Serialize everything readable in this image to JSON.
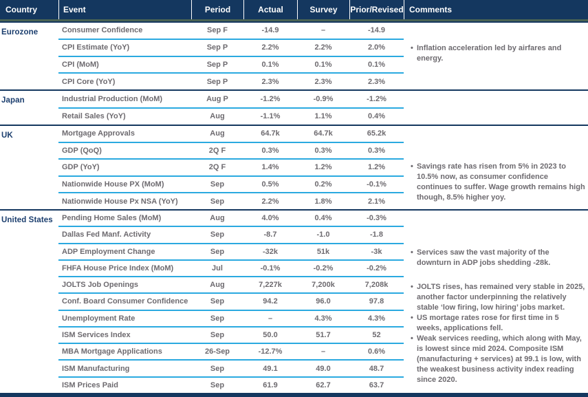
{
  "bullet": "•",
  "columns": [
    "Country",
    "Event",
    "Period",
    "Actual",
    "Survey",
    "Prior/Revised",
    "Comments"
  ],
  "sections": [
    {
      "country": "Eurozone",
      "rows": [
        {
          "event": "Consumer Confidence",
          "period": "Sep F",
          "actual": "-14.9",
          "survey": "–",
          "prior": "-14.9"
        },
        {
          "event": "CPI Estimate (YoY)",
          "period": "Sep P",
          "actual": "2.2%",
          "survey": "2.2%",
          "prior": "2.0%"
        },
        {
          "event": "CPI (MoM)",
          "period": "Sep P",
          "actual": "0.1%",
          "survey": "0.1%",
          "prior": "0.1%"
        },
        {
          "event": "CPI Core (YoY)",
          "period": "Sep P",
          "actual": "2.3%",
          "survey": "2.3%",
          "prior": "2.3%"
        }
      ],
      "comments": [
        "Inflation acceleration led by airfares and energy."
      ]
    },
    {
      "country": "Japan",
      "rows": [
        {
          "event": "Industrial Production (MoM)",
          "period": "Aug P",
          "actual": "-1.2%",
          "survey": "-0.9%",
          "prior": "-1.2%"
        },
        {
          "event": "Retail Sales (YoY)",
          "period": "Aug",
          "actual": "-1.1%",
          "survey": "1.1%",
          "prior": "0.4%"
        }
      ],
      "comments": []
    },
    {
      "country": "UK",
      "rows": [
        {
          "event": "Mortgage Approvals",
          "period": "Aug",
          "actual": "64.7k",
          "survey": "64.7k",
          "prior": "65.2k"
        },
        {
          "event": "GDP (QoQ)",
          "period": "2Q F",
          "actual": "0.3%",
          "survey": "0.3%",
          "prior": "0.3%"
        },
        {
          "event": "GDP (YoY)",
          "period": "2Q F",
          "actual": "1.4%",
          "survey": "1.2%",
          "prior": "1.2%"
        },
        {
          "event": "Nationwide House PX (MoM)",
          "period": "Sep",
          "actual": "0.5%",
          "survey": "0.2%",
          "prior": "-0.1%"
        },
        {
          "event": "Nationwide House Px NSA (YoY)",
          "period": "Sep",
          "actual": "2.2%",
          "survey": "1.8%",
          "prior": "2.1%"
        }
      ],
      "comments": [
        "Savings rate has risen from 5% in 2023 to 10.5% now, as consumer confidence continues to suffer. Wage growth remains high though, 8.5% higher yoy."
      ]
    },
    {
      "country": "United States",
      "rows": [
        {
          "event": "Pending Home Sales (MoM)",
          "period": "Aug",
          "actual": "4.0%",
          "survey": "0.4%",
          "prior": "-0.3%"
        },
        {
          "event": "Dallas Fed Manf. Activity",
          "period": "Sep",
          "actual": "-8.7",
          "survey": "-1.0",
          "prior": "-1.8"
        },
        {
          "event": "ADP Employment Change",
          "period": "Sep",
          "actual": "-32k",
          "survey": "51k",
          "prior": "-3k"
        },
        {
          "event": "FHFA House Price Index (MoM)",
          "period": "Jul",
          "actual": "-0.1%",
          "survey": "-0.2%",
          "prior": "-0.2%"
        },
        {
          "event": "JOLTS Job Openings",
          "period": "Aug",
          "actual": "7,227k",
          "survey": "7,200k",
          "prior": "7,208k"
        },
        {
          "event": "Conf. Board Consumer Confidence",
          "period": "Sep",
          "actual": "94.2",
          "survey": "96.0",
          "prior": "97.8"
        },
        {
          "event": "Unemployment Rate",
          "period": "Sep",
          "actual": "–",
          "survey": "4.3%",
          "prior": "4.3%"
        },
        {
          "event": "ISM Services Index",
          "period": "Sep",
          "actual": "50.0",
          "survey": "51.7",
          "prior": "52"
        },
        {
          "event": "MBA Mortgage Applications",
          "period": "26-Sep",
          "actual": "-12.7%",
          "survey": "–",
          "prior": "0.6%"
        },
        {
          "event": "ISM Manufacturing",
          "period": "Sep",
          "actual": "49.1",
          "survey": "49.0",
          "prior": "48.7"
        },
        {
          "event": "ISM Prices Paid",
          "period": "Sep",
          "actual": "61.9",
          "survey": "62.7",
          "prior": "63.7"
        }
      ],
      "comments": [
        "Services saw the vast majority of the downturn in ADP jobs shedding -28k.",
        "JOLTS rises, has remained very stable in 2025, another factor underpinning the relatively stable ‘low firing, low hiring’ jobs market.",
        "US mortage rates rose for first time in 5 weeks, applications fell.",
        "Weak services reeding, which along with May, is lowest since mid 2024. Composite ISM (manufacturing + services) at 99.1 is low, with the weakest business activity index reading since 2020."
      ]
    }
  ],
  "colors": {
    "header_bg": "#14375f",
    "section_line": "#14375f",
    "row_separator": "#2aa9e0",
    "accent_green": "#4a6353",
    "country_text": "#1b3e6e",
    "body_text": "#6d6a6f"
  }
}
